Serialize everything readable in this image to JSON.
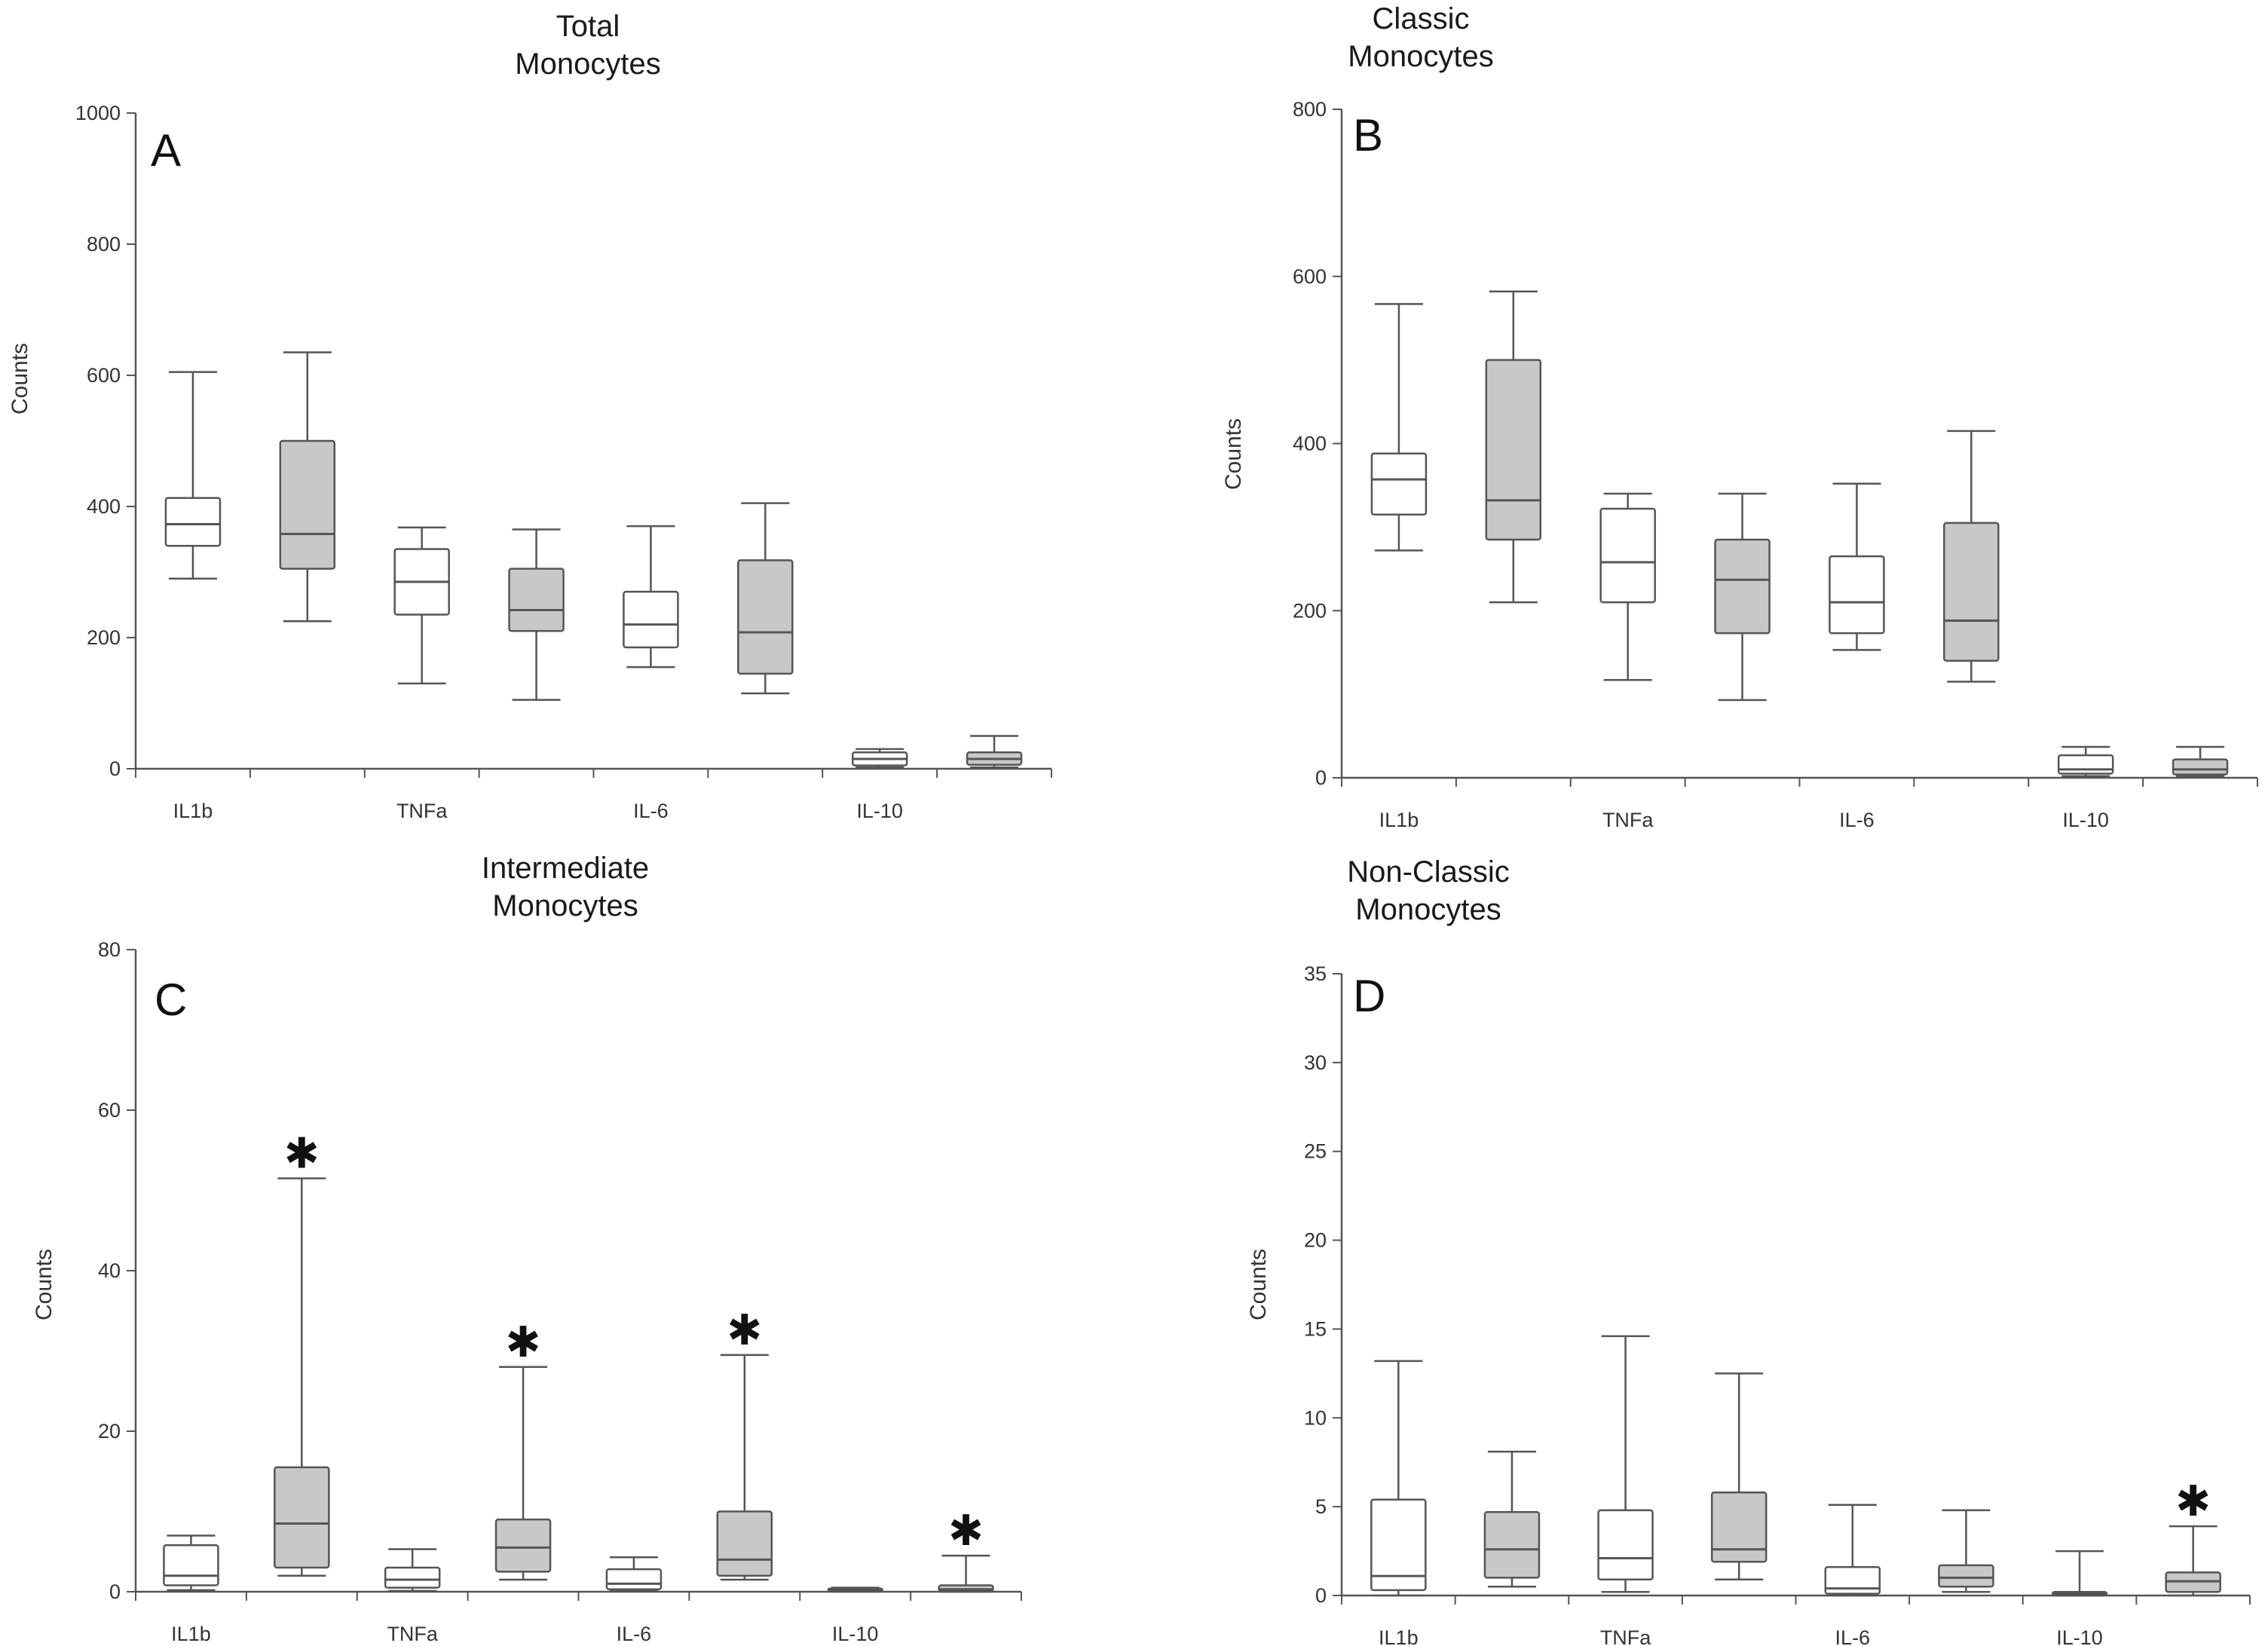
{
  "figure": {
    "fill_colors": {
      "open": "#ffffff",
      "filled": "#c8c8c8",
      "stroke": "#555555"
    },
    "categories": [
      "IL1b",
      "TNFa",
      "IL-6",
      "IL-10"
    ]
  },
  "chart_data": [
    {
      "type": "boxplot",
      "panel_label": "A",
      "title": "Total\nMonocytes",
      "title_line1": "Total",
      "title_line2": "Monocytes",
      "ylabel": "Counts",
      "ylim": [
        0,
        1000
      ],
      "yticks": [
        0,
        200,
        400,
        600,
        800,
        1000
      ],
      "categories": [
        "IL1b",
        "TNFa",
        "IL-6",
        "IL-10"
      ],
      "boxes": [
        {
          "category": "IL1b",
          "group": "open",
          "min": 290,
          "q1": 340,
          "median": 373,
          "q3": 413,
          "max": 605
        },
        {
          "category": "IL1b",
          "group": "filled",
          "min": 225,
          "q1": 305,
          "median": 358,
          "q3": 500,
          "max": 635
        },
        {
          "category": "TNFa",
          "group": "open",
          "min": 130,
          "q1": 235,
          "median": 285,
          "q3": 335,
          "max": 368
        },
        {
          "category": "TNFa",
          "group": "filled",
          "min": 105,
          "q1": 210,
          "median": 242,
          "q3": 305,
          "max": 365
        },
        {
          "category": "IL-6",
          "group": "open",
          "min": 155,
          "q1": 185,
          "median": 220,
          "q3": 270,
          "max": 370
        },
        {
          "category": "IL-6",
          "group": "filled",
          "min": 115,
          "q1": 145,
          "median": 208,
          "q3": 318,
          "max": 405
        },
        {
          "category": "IL-10",
          "group": "open",
          "min": 2,
          "q1": 5,
          "median": 15,
          "q3": 25,
          "max": 30
        },
        {
          "category": "IL-10",
          "group": "filled",
          "min": 2,
          "q1": 6,
          "median": 15,
          "q3": 25,
          "max": 50
        }
      ]
    },
    {
      "type": "boxplot",
      "panel_label": "B",
      "title": "Classic\nMonocytes",
      "title_line1": "Classic",
      "title_line2": "Monocytes",
      "ylabel": "Counts",
      "ylim": [
        0,
        800
      ],
      "yticks": [
        0,
        200,
        400,
        600,
        800
      ],
      "categories": [
        "IL1b",
        "TNFa",
        "IL-6",
        "IL-10"
      ],
      "boxes": [
        {
          "category": "IL1b",
          "group": "open",
          "min": 272,
          "q1": 315,
          "median": 357,
          "q3": 388,
          "max": 567
        },
        {
          "category": "IL1b",
          "group": "filled",
          "min": 210,
          "q1": 285,
          "median": 332,
          "q3": 500,
          "max": 582
        },
        {
          "category": "TNFa",
          "group": "open",
          "min": 117,
          "q1": 210,
          "median": 258,
          "q3": 322,
          "max": 340
        },
        {
          "category": "TNFa",
          "group": "filled",
          "min": 93,
          "q1": 173,
          "median": 237,
          "q3": 285,
          "max": 340
        },
        {
          "category": "IL-6",
          "group": "open",
          "min": 153,
          "q1": 173,
          "median": 210,
          "q3": 265,
          "max": 352
        },
        {
          "category": "IL-6",
          "group": "filled",
          "min": 115,
          "q1": 140,
          "median": 188,
          "q3": 305,
          "max": 415
        },
        {
          "category": "IL-10",
          "group": "open",
          "min": 2,
          "q1": 5,
          "median": 10,
          "q3": 27,
          "max": 37
        },
        {
          "category": "IL-10",
          "group": "filled",
          "min": 2,
          "q1": 4,
          "median": 10,
          "q3": 22,
          "max": 37
        }
      ]
    },
    {
      "type": "boxplot",
      "panel_label": "C",
      "title": "Intermediate\nMonocytes",
      "title_line1": "Intermediate",
      "title_line2": "Monocytes",
      "ylabel": "Counts",
      "ylim": [
        0,
        80
      ],
      "yticks": [
        0,
        20,
        40,
        60,
        80
      ],
      "categories": [
        "IL1b",
        "TNFa",
        "IL-6",
        "IL-10"
      ],
      "boxes": [
        {
          "category": "IL1b",
          "group": "open",
          "min": 0.2,
          "q1": 0.8,
          "median": 2,
          "q3": 5.8,
          "max": 7,
          "star": false
        },
        {
          "category": "IL1b",
          "group": "filled",
          "min": 2,
          "q1": 3,
          "median": 8.5,
          "q3": 15.5,
          "max": 51.5,
          "star": true
        },
        {
          "category": "TNFa",
          "group": "open",
          "min": 0.1,
          "q1": 0.5,
          "median": 1.5,
          "q3": 3,
          "max": 5.3,
          "star": false
        },
        {
          "category": "TNFa",
          "group": "filled",
          "min": 1.5,
          "q1": 2.5,
          "median": 5.5,
          "q3": 9,
          "max": 28,
          "star": true
        },
        {
          "category": "IL-6",
          "group": "open",
          "min": 0.1,
          "q1": 0.3,
          "median": 1,
          "q3": 2.8,
          "max": 4.3,
          "star": false
        },
        {
          "category": "IL-6",
          "group": "filled",
          "min": 1.5,
          "q1": 2,
          "median": 4,
          "q3": 10,
          "max": 29.5,
          "star": true
        },
        {
          "category": "IL-10",
          "group": "open",
          "min": 0,
          "q1": 0.1,
          "median": 0.2,
          "q3": 0.4,
          "max": 0.5,
          "star": false
        },
        {
          "category": "IL-10",
          "group": "filled",
          "min": 0,
          "q1": 0.1,
          "median": 0.3,
          "q3": 0.8,
          "max": 4.5,
          "star": true
        }
      ]
    },
    {
      "type": "boxplot",
      "panel_label": "D",
      "title": "Non-Classic\nMonocytes",
      "title_line1": "Non-Classic",
      "title_line2": "Monocytes",
      "ylabel": "Counts",
      "ylim": [
        0,
        35
      ],
      "yticks": [
        0,
        5,
        10,
        15,
        20,
        25,
        30,
        35
      ],
      "categories": [
        "IL1b",
        "TNFa",
        "IL-6",
        "IL-10"
      ],
      "boxes": [
        {
          "category": "IL1b",
          "group": "open",
          "min": 0,
          "q1": 0.3,
          "median": 1.1,
          "q3": 5.4,
          "max": 13.2,
          "star": false
        },
        {
          "category": "IL1b",
          "group": "filled",
          "min": 0.5,
          "q1": 1,
          "median": 2.6,
          "q3": 4.7,
          "max": 8.1,
          "star": false
        },
        {
          "category": "TNFa",
          "group": "open",
          "min": 0.2,
          "q1": 0.9,
          "median": 2.1,
          "q3": 4.8,
          "max": 14.6,
          "star": false
        },
        {
          "category": "TNFa",
          "group": "filled",
          "min": 0.9,
          "q1": 1.9,
          "median": 2.6,
          "q3": 5.8,
          "max": 12.5,
          "star": false
        },
        {
          "category": "IL-6",
          "group": "open",
          "min": 0,
          "q1": 0.1,
          "median": 0.4,
          "q3": 1.6,
          "max": 5.1,
          "star": false
        },
        {
          "category": "IL-6",
          "group": "filled",
          "min": 0.2,
          "q1": 0.5,
          "median": 1,
          "q3": 1.7,
          "max": 4.8,
          "star": false
        },
        {
          "category": "IL-10",
          "group": "open",
          "min": 0,
          "q1": 0,
          "median": 0.1,
          "q3": 0.2,
          "max": 2.5,
          "star": false
        },
        {
          "category": "IL-10",
          "group": "filled",
          "min": 0,
          "q1": 0.2,
          "median": 0.8,
          "q3": 1.3,
          "max": 3.9,
          "star": true
        }
      ]
    }
  ]
}
